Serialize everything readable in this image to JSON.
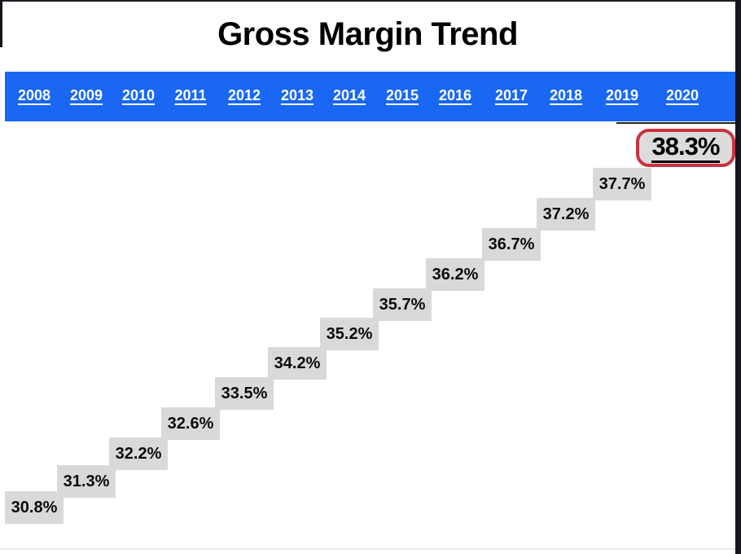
{
  "title": "Gross Margin Trend",
  "year_bar": {
    "years": [
      "2008",
      "2009",
      "2010",
      "2011",
      "2012",
      "2013",
      "2014",
      "2015",
      "2016",
      "2017",
      "2018",
      "2019",
      "2020"
    ]
  },
  "chart_data": {
    "type": "scatter",
    "title": "Gross Margin Trend",
    "x": [
      "2008",
      "2009",
      "2010",
      "2011",
      "2012",
      "2013",
      "2014",
      "2015",
      "2016",
      "2017",
      "2018",
      "2019",
      "2020"
    ],
    "values": [
      30.8,
      31.3,
      32.2,
      32.6,
      33.5,
      34.2,
      35.2,
      35.7,
      36.2,
      36.7,
      37.2,
      37.7,
      38.3
    ],
    "unit": "%",
    "value_labels": [
      "30.8%",
      "31.3%",
      "32.2%",
      "32.6%",
      "33.5%",
      "34.2%",
      "35.2%",
      "35.7%",
      "36.2%",
      "36.7%",
      "37.2%",
      "37.7%"
    ],
    "highlight": {
      "year": "2020",
      "value": 38.3,
      "label": "38.3%",
      "style": "red-rounded-outline"
    },
    "xlabel": "",
    "ylabel": "",
    "ylim": [
      30,
      39
    ],
    "grid": false,
    "legend": false,
    "label_style": "gray-box-data-labels-staircase"
  },
  "colors": {
    "header_blue": "#1967f2",
    "label_bg_gray": "#d9d9d9",
    "highlight_border_red": "#c9323e",
    "year_text_white": "#ffffff",
    "text_black": "#000000"
  }
}
